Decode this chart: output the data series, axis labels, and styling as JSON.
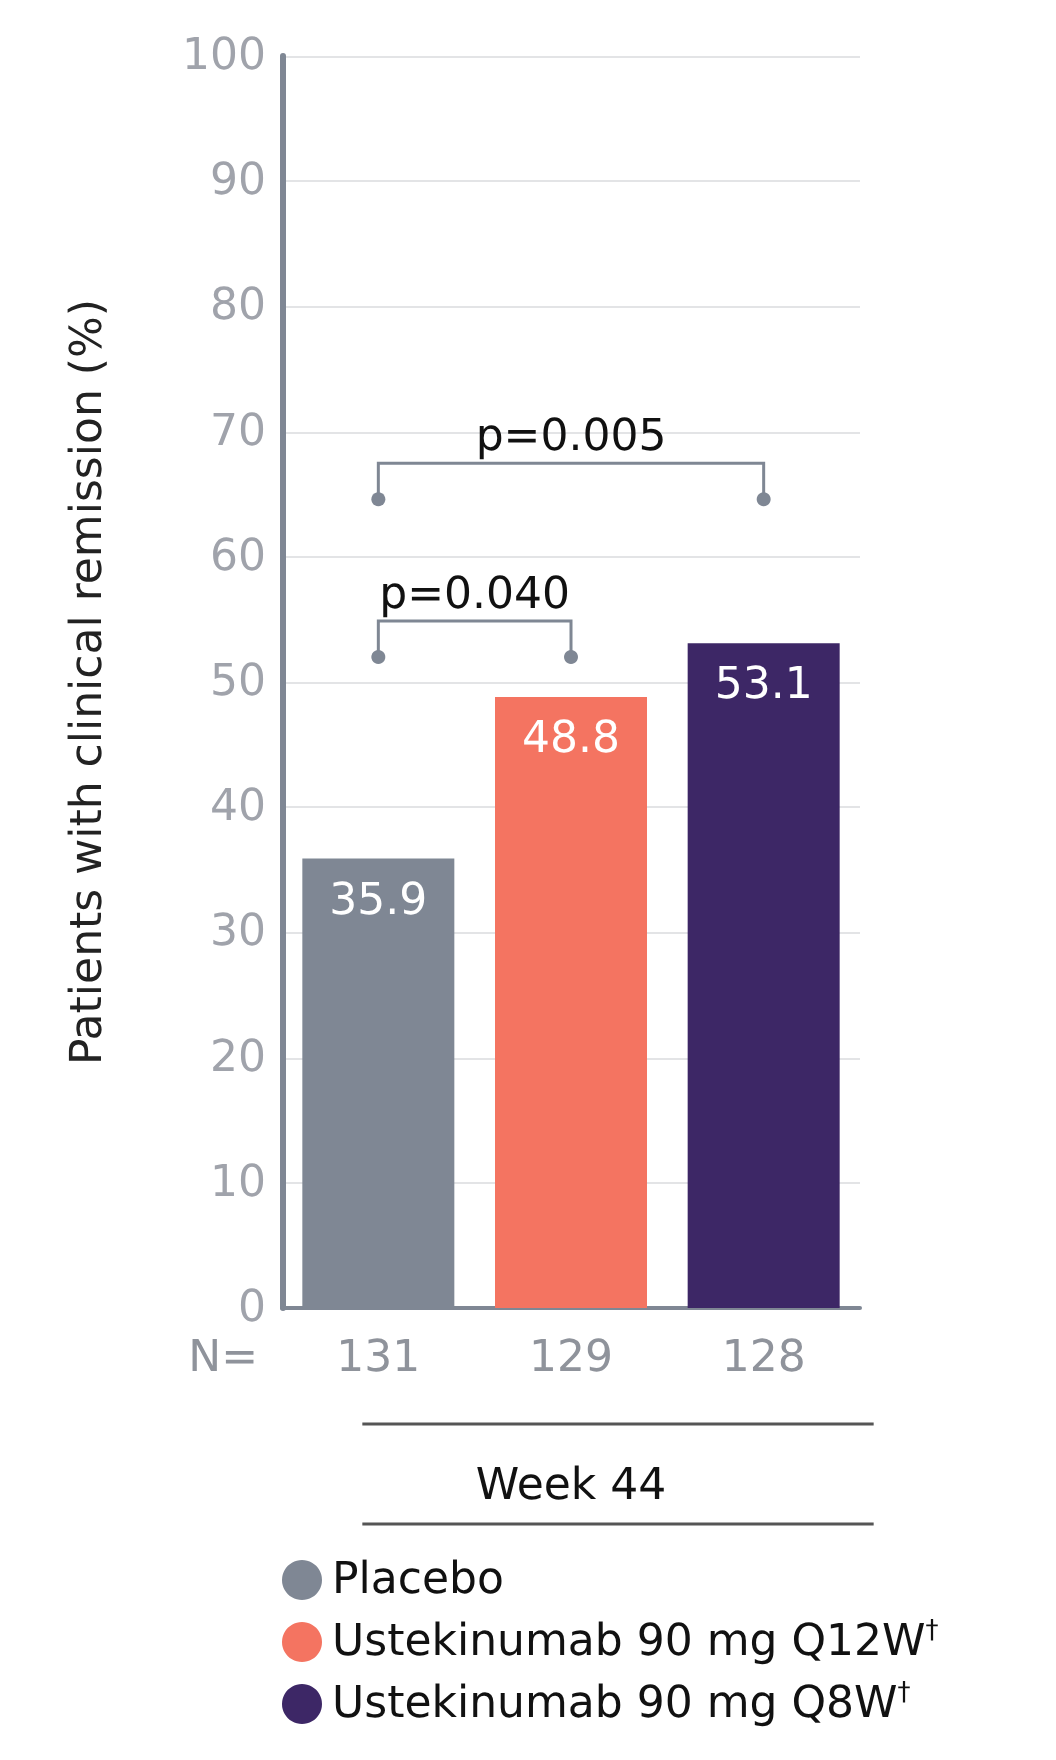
{
  "chart_data": {
    "type": "bar",
    "stacked": true,
    "categories": [
      "131",
      "129",
      "128"
    ],
    "series": [
      {
        "name": "Placebo",
        "color": "#7f8794",
        "values": [
          35.9,
          null,
          null
        ]
      },
      {
        "name": "Ustekinumab 90 mg Q12W$^{†}$",
        "color": "#f47461",
        "values": [
          null,
          48.8,
          null
        ]
      },
      {
        "name": "Ustekinumab 90 mg Q8W$^{†}$",
        "color": "#3d2766",
        "values": [
          null,
          null,
          53.1
        ]
      }
    ],
    "ylim": [
      0,
      100
    ],
    "yticks": [
      0,
      10,
      20,
      30,
      40,
      50,
      60,
      70,
      80,
      90,
      100
    ],
    "ylabel": "Patients with clinical remission (%)",
    "xlabel": "Week 44",
    "annotations": [
      "N=",
      "p=0.040",
      "p=0.005"
    ],
    "data_labels": true,
    "grid": "y",
    "legend": "bottom"
  }
}
